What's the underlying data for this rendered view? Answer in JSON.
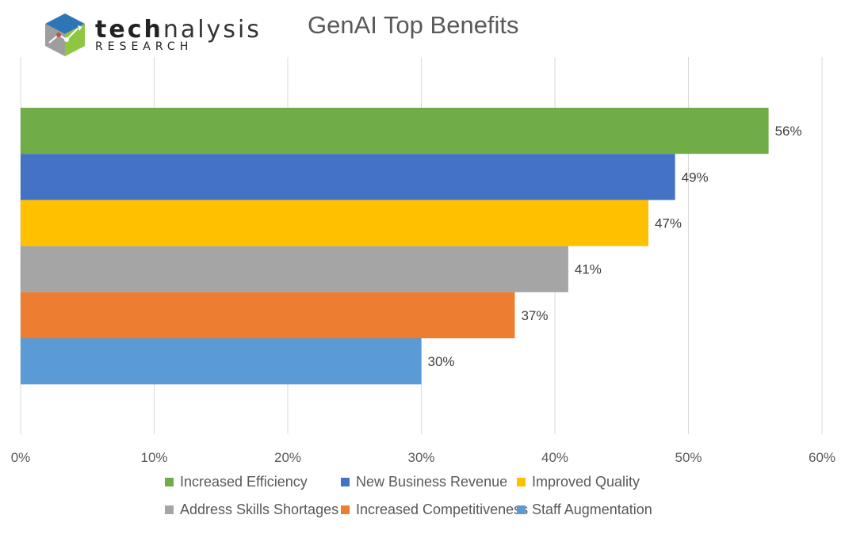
{
  "logo": {
    "word_bold": "tech",
    "word_light": "nalysis",
    "subtitle": "RESEARCH"
  },
  "chart_data": {
    "type": "bar",
    "orientation": "horizontal",
    "title": "GenAI Top Benefits",
    "xlabel": "",
    "ylabel": "",
    "xlim": [
      0,
      60
    ],
    "x_ticks": [
      "0%",
      "10%",
      "20%",
      "30%",
      "40%",
      "50%",
      "60%"
    ],
    "grid": true,
    "legend_position": "bottom",
    "series": [
      {
        "name": "Increased Efficiency",
        "value": 56,
        "label": "56%",
        "color": "#70ad47"
      },
      {
        "name": "New Business Revenue",
        "value": 49,
        "label": "49%",
        "color": "#4472c4"
      },
      {
        "name": "Improved Quality",
        "value": 47,
        "label": "47%",
        "color": "#ffc000"
      },
      {
        "name": "Address Skills Shortages",
        "value": 41,
        "label": "41%",
        "color": "#a5a5a5"
      },
      {
        "name": "Increased Competitiveness",
        "value": 37,
        "label": "37%",
        "color": "#ed7d31"
      },
      {
        "name": "Staff Augmentation",
        "value": 30,
        "label": "30%",
        "color": "#5b9bd5"
      }
    ]
  }
}
